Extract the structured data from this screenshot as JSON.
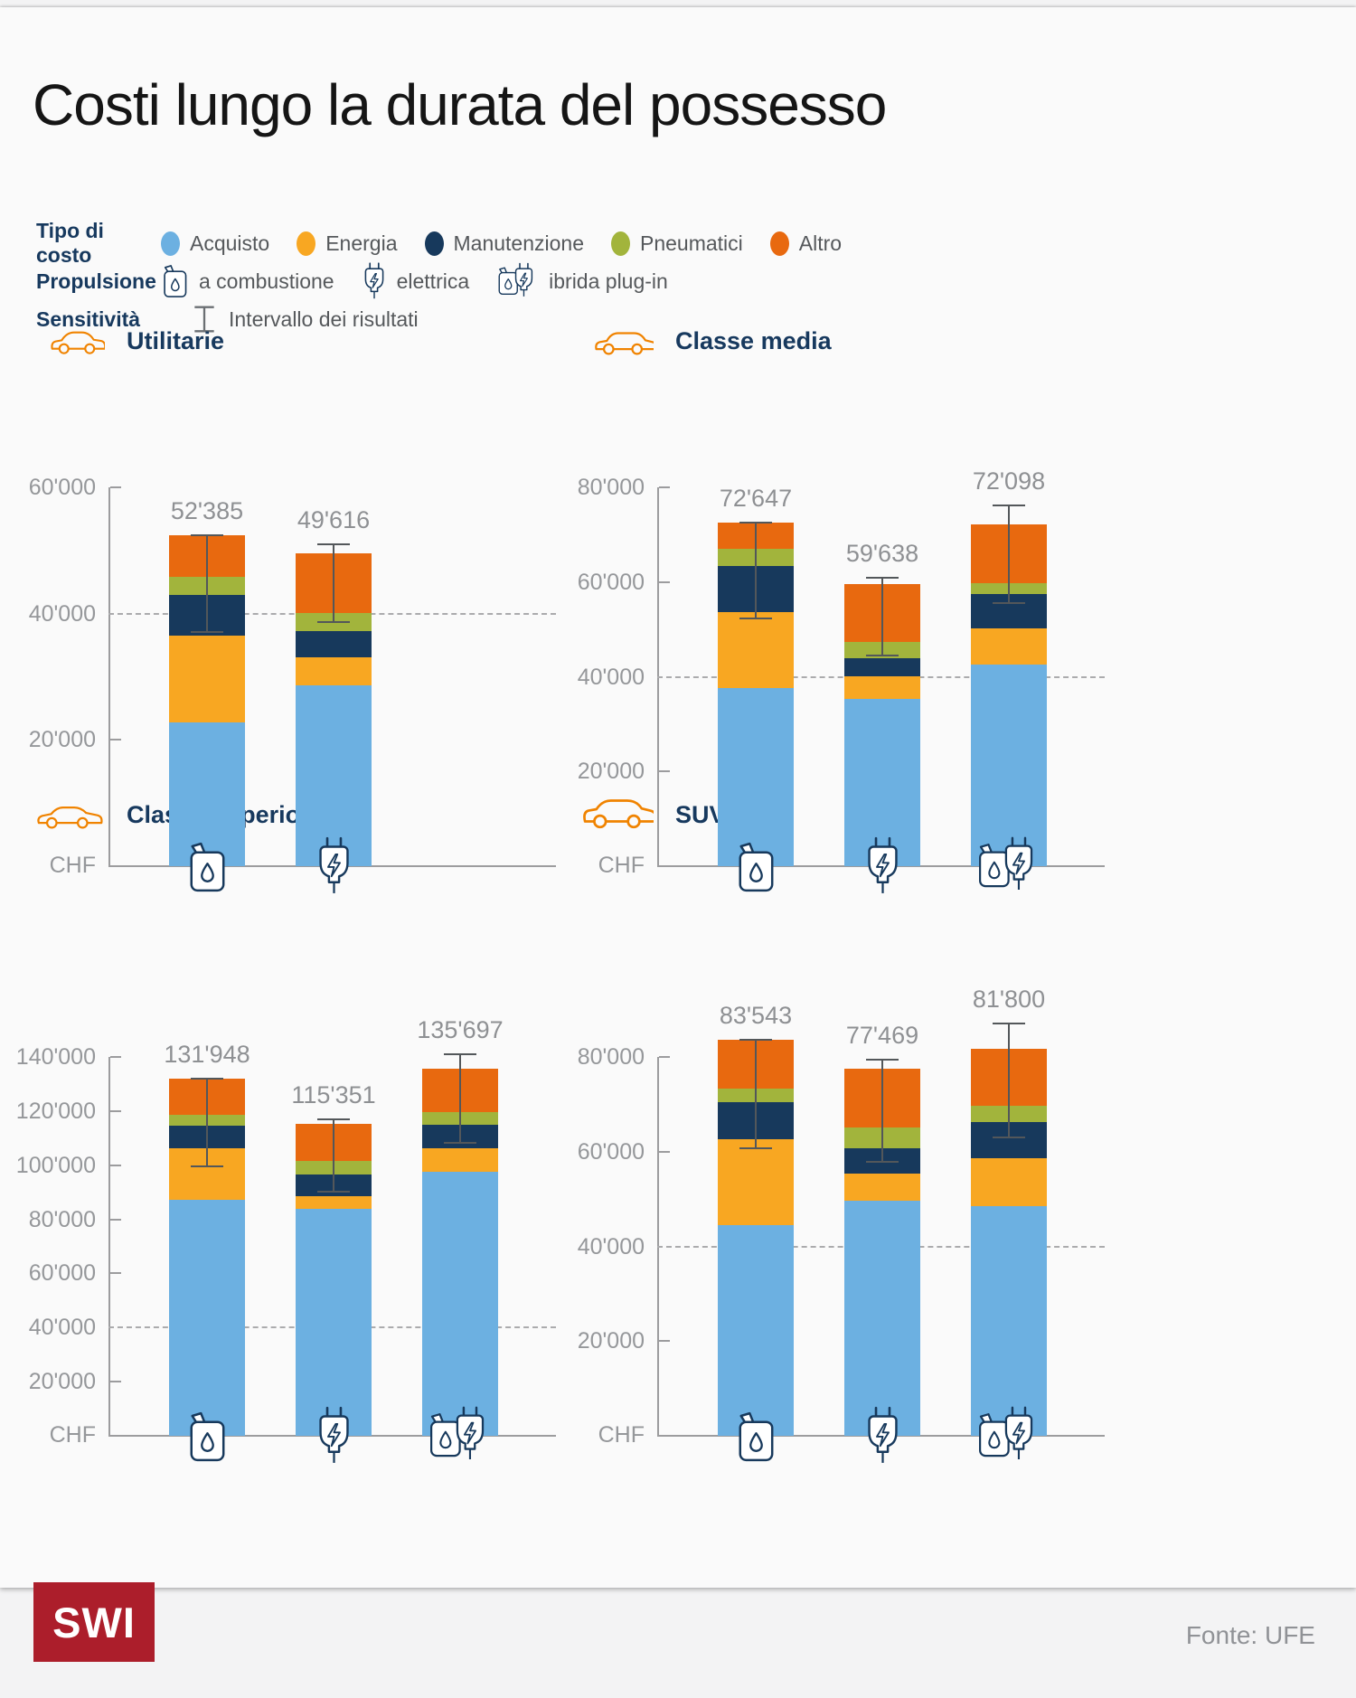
{
  "title": "Costi lungo la durata del possesso",
  "source": "Fonte: UFE",
  "logo_text": "SWI",
  "colors": {
    "acquisto": "#6CB0E1",
    "energia": "#F8A722",
    "manutenzione": "#17395C",
    "pneumatici": "#A2B43C",
    "altro": "#E8690F",
    "accent_navy": "#17395E",
    "car_orange": "#F08300",
    "logo_red": "#AC1E2B"
  },
  "legend": {
    "cost_label": "Tipo di costo",
    "cost_items": [
      {
        "key": "acquisto",
        "label": "Acquisto",
        "color": "#6CB0E1"
      },
      {
        "key": "energia",
        "label": "Energia",
        "color": "#F8A722"
      },
      {
        "key": "manutenzione",
        "label": "Manutenzione",
        "color": "#17395C"
      },
      {
        "key": "pneumatici",
        "label": "Pneumatici",
        "color": "#A2B43C"
      },
      {
        "key": "altro",
        "label": "Altro",
        "color": "#E8690F"
      }
    ],
    "propulsion_label": "Propulsione",
    "propulsion_items": [
      {
        "label": "a combustione",
        "icon": "fuel-icon"
      },
      {
        "label": "elettrica",
        "icon": "plug-icon"
      },
      {
        "label": "ibrida plug-in",
        "icon": "hybrid-icon"
      }
    ],
    "sensitivity_label": "Sensitività",
    "sensitivity_item": "Intervallo dei risultati"
  },
  "chart_data": [
    {
      "type": "bar",
      "title": "Utilitarie",
      "car_icon": "hatchback",
      "unit": "CHF",
      "y_max": 60000,
      "reference_line": 40000,
      "ticks": [
        {
          "v": 60000,
          "label": "60'000"
        },
        {
          "v": 40000,
          "label": "40'000"
        },
        {
          "v": 20000,
          "label": "20'000"
        }
      ],
      "series_order": [
        "acquisto",
        "energia",
        "manutenzione",
        "pneumatici",
        "altro"
      ],
      "bars": [
        {
          "propulsion": "a combustione",
          "icon": "fuel-icon",
          "total": 52385,
          "total_label": "52'385",
          "segments": {
            "acquisto": 22700,
            "energia": 13800,
            "manutenzione": 6400,
            "pneumatici": 2900,
            "altro": 6585
          },
          "range": {
            "low": 37100,
            "high": 52385
          }
        },
        {
          "propulsion": "elettrica",
          "icon": "plug-icon",
          "total": 49616,
          "total_label": "49'616",
          "segments": {
            "acquisto": 28700,
            "energia": 4400,
            "manutenzione": 4200,
            "pneumatici": 2800,
            "altro": 9516
          },
          "range": {
            "low": 38600,
            "high": 51000
          }
        }
      ]
    },
    {
      "type": "bar",
      "title": "Classe media",
      "car_icon": "wagon",
      "unit": "CHF",
      "y_max": 80000,
      "reference_line": 40000,
      "ticks": [
        {
          "v": 80000,
          "label": "80'000"
        },
        {
          "v": 60000,
          "label": "60'000"
        },
        {
          "v": 40000,
          "label": "40'000"
        },
        {
          "v": 20000,
          "label": "20'000"
        }
      ],
      "series_order": [
        "acquisto",
        "energia",
        "manutenzione",
        "pneumatici",
        "altro"
      ],
      "bars": [
        {
          "propulsion": "a combustione",
          "icon": "fuel-icon",
          "total": 72647,
          "total_label": "72'647",
          "segments": {
            "acquisto": 37700,
            "energia": 15900,
            "manutenzione": 9700,
            "pneumatici": 3700,
            "altro": 5647
          },
          "range": {
            "low": 52300,
            "high": 72647
          }
        },
        {
          "propulsion": "elettrica",
          "icon": "plug-icon",
          "total": 59638,
          "total_label": "59'638",
          "segments": {
            "acquisto": 35300,
            "energia": 4800,
            "manutenzione": 3800,
            "pneumatici": 3500,
            "altro": 12238
          },
          "range": {
            "low": 44500,
            "high": 61000
          }
        },
        {
          "propulsion": "ibrida plug-in",
          "icon": "hybrid-icon",
          "total": 72098,
          "total_label": "72'098",
          "segments": {
            "acquisto": 42600,
            "energia": 7600,
            "manutenzione": 7300,
            "pneumatici": 2300,
            "altro": 12298
          },
          "range": {
            "low": 55500,
            "high": 76200
          }
        }
      ]
    },
    {
      "type": "bar",
      "title": "Classe superiore",
      "car_icon": "sedan",
      "unit": "CHF",
      "y_max": 140000,
      "reference_line": 40000,
      "ticks": [
        {
          "v": 140000,
          "label": "140'000"
        },
        {
          "v": 120000,
          "label": "120'000"
        },
        {
          "v": 100000,
          "label": "100'000"
        },
        {
          "v": 80000,
          "label": "80'000"
        },
        {
          "v": 60000,
          "label": "60'000"
        },
        {
          "v": 40000,
          "label": "40'000"
        },
        {
          "v": 20000,
          "label": "20'000"
        }
      ],
      "series_order": [
        "acquisto",
        "energia",
        "manutenzione",
        "pneumatici",
        "altro"
      ],
      "bars": [
        {
          "propulsion": "a combustione",
          "icon": "fuel-icon",
          "total": 131948,
          "total_label": "131'948",
          "segments": {
            "acquisto": 87200,
            "energia": 18900,
            "manutenzione": 8400,
            "pneumatici": 4200,
            "altro": 13248
          },
          "range": {
            "low": 99500,
            "high": 131948
          }
        },
        {
          "propulsion": "elettrica",
          "icon": "plug-icon",
          "total": 115351,
          "total_label": "115'351",
          "segments": {
            "acquisto": 83900,
            "energia": 4600,
            "manutenzione": 8000,
            "pneumatici": 5000,
            "altro": 13851
          },
          "range": {
            "low": 90100,
            "high": 117000
          }
        },
        {
          "propulsion": "ibrida plug-in",
          "icon": "hybrid-icon",
          "total": 135697,
          "total_label": "135'697",
          "segments": {
            "acquisto": 97600,
            "energia": 8500,
            "manutenzione": 9000,
            "pneumatici": 4400,
            "altro": 16197
          },
          "range": {
            "low": 108300,
            "high": 140900
          }
        }
      ]
    },
    {
      "type": "bar",
      "title": "SUV",
      "car_icon": "suv",
      "unit": "CHF",
      "y_max": 80000,
      "reference_line": 40000,
      "ticks": [
        {
          "v": 80000,
          "label": "80'000"
        },
        {
          "v": 60000,
          "label": "60'000"
        },
        {
          "v": 40000,
          "label": "40'000"
        },
        {
          "v": 20000,
          "label": "20'000"
        }
      ],
      "series_order": [
        "acquisto",
        "energia",
        "manutenzione",
        "pneumatici",
        "altro"
      ],
      "bars": [
        {
          "propulsion": "a combustione",
          "icon": "fuel-icon",
          "total": 83543,
          "total_label": "83'543",
          "segments": {
            "acquisto": 44400,
            "energia": 18200,
            "manutenzione": 7900,
            "pneumatici": 2900,
            "altro": 10143
          },
          "range": {
            "low": 60700,
            "high": 83543
          }
        },
        {
          "propulsion": "elettrica",
          "icon": "plug-icon",
          "total": 77469,
          "total_label": "77'469",
          "segments": {
            "acquisto": 49600,
            "energia": 5700,
            "manutenzione": 5400,
            "pneumatici": 4500,
            "altro": 12269
          },
          "range": {
            "low": 57800,
            "high": 79500
          }
        },
        {
          "propulsion": "ibrida plug-in",
          "icon": "hybrid-icon",
          "total": 81800,
          "total_label": "81'800",
          "segments": {
            "acquisto": 48500,
            "energia": 10100,
            "manutenzione": 7700,
            "pneumatici": 3300,
            "altro": 12200
          },
          "range": {
            "low": 63100,
            "high": 87100
          }
        }
      ]
    }
  ]
}
